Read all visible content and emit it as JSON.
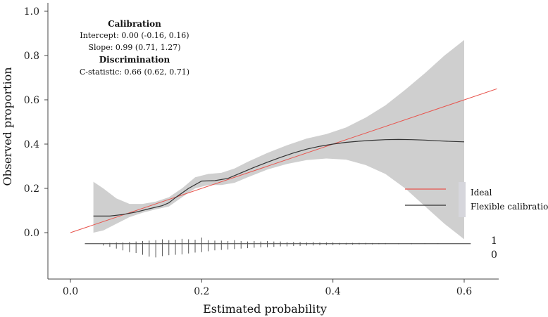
{
  "chart_data": {
    "type": "line",
    "xlabel": "Estimated probability",
    "ylabel": "Observed proportion",
    "xlim": [
      -0.03,
      0.65
    ],
    "ylim": [
      -0.2,
      1.03
    ],
    "xticks": [
      0.0,
      0.2,
      0.4,
      0.6
    ],
    "xtick_labels": [
      "0.0",
      "0.2",
      "0.4",
      "0.6"
    ],
    "yticks": [
      0.0,
      0.2,
      0.4,
      0.6,
      0.8,
      1.0
    ],
    "ytick_labels": [
      "0.0",
      "0.2",
      "0.4",
      "0.6",
      "0.8",
      "1.0"
    ],
    "annotations": {
      "calibration_header": "Calibration",
      "intercept": "Intercept: 0.00 (-0.16, 0.16)",
      "slope": "Slope: 0.99 (0.71, 1.27)",
      "discrimination_header": "Discrimination",
      "c_statistic": "C-statistic: 0.66 (0.62, 0.71)"
    },
    "legend": [
      {
        "name": "Ideal",
        "color": "#e8554e"
      },
      {
        "name": "Flexible calibration",
        "color": "#333333"
      }
    ],
    "series": [
      {
        "name": "Ideal",
        "color": "#e8554e",
        "x": [
          0.0,
          0.65
        ],
        "y": [
          0.0,
          0.65
        ]
      },
      {
        "name": "Flexible calibration",
        "color": "#333333",
        "x": [
          0.035,
          0.06,
          0.08,
          0.1,
          0.12,
          0.14,
          0.15,
          0.16,
          0.18,
          0.2,
          0.22,
          0.24,
          0.26,
          0.28,
          0.3,
          0.32,
          0.34,
          0.36,
          0.38,
          0.4,
          0.42,
          0.44,
          0.46,
          0.48,
          0.5,
          0.52,
          0.54,
          0.56,
          0.58,
          0.6
        ],
        "y": [
          0.075,
          0.075,
          0.082,
          0.093,
          0.108,
          0.122,
          0.135,
          0.158,
          0.2,
          0.233,
          0.235,
          0.245,
          0.27,
          0.295,
          0.318,
          0.34,
          0.36,
          0.377,
          0.39,
          0.4,
          0.408,
          0.413,
          0.417,
          0.42,
          0.421,
          0.42,
          0.418,
          0.415,
          0.412,
          0.41
        ]
      }
    ],
    "confidence_band": {
      "x": [
        0.035,
        0.05,
        0.07,
        0.09,
        0.11,
        0.13,
        0.15,
        0.17,
        0.19,
        0.21,
        0.23,
        0.25,
        0.27,
        0.3,
        0.33,
        0.36,
        0.39,
        0.42,
        0.45,
        0.48,
        0.51,
        0.54,
        0.57,
        0.6
      ],
      "lower": [
        0.0,
        0.01,
        0.04,
        0.07,
        0.09,
        0.105,
        0.118,
        0.16,
        0.2,
        0.215,
        0.215,
        0.225,
        0.25,
        0.285,
        0.31,
        0.328,
        0.335,
        0.33,
        0.305,
        0.265,
        0.2,
        0.12,
        0.04,
        -0.03
      ],
      "upper": [
        0.23,
        0.2,
        0.155,
        0.13,
        0.13,
        0.14,
        0.16,
        0.2,
        0.25,
        0.265,
        0.27,
        0.29,
        0.32,
        0.36,
        0.395,
        0.425,
        0.445,
        0.475,
        0.52,
        0.575,
        0.645,
        0.72,
        0.8,
        0.87
      ]
    },
    "spike_histogram": {
      "labels": [
        "1",
        "0"
      ],
      "x": [
        0.05,
        0.06,
        0.07,
        0.08,
        0.09,
        0.1,
        0.11,
        0.12,
        0.13,
        0.14,
        0.15,
        0.16,
        0.17,
        0.18,
        0.19,
        0.2,
        0.21,
        0.22,
        0.23,
        0.24,
        0.25,
        0.26,
        0.27,
        0.28,
        0.29,
        0.3,
        0.31,
        0.32,
        0.33,
        0.34,
        0.35,
        0.36,
        0.37,
        0.38,
        0.39,
        0.4,
        0.41,
        0.42,
        0.43,
        0.44,
        0.45,
        0.46,
        0.47,
        0.48,
        0.5,
        0.52,
        0.54,
        0.56
      ],
      "events": [
        0.002,
        0.004,
        0.006,
        0.006,
        0.008,
        0.01,
        0.012,
        0.014,
        0.016,
        0.02,
        0.016,
        0.018,
        0.022,
        0.02,
        0.018,
        0.028,
        0.016,
        0.014,
        0.014,
        0.012,
        0.016,
        0.012,
        0.01,
        0.012,
        0.01,
        0.012,
        0.01,
        0.01,
        0.008,
        0.008,
        0.008,
        0.006,
        0.008,
        0.006,
        0.006,
        0.006,
        0.004,
        0.004,
        0.004,
        0.004,
        0.004,
        0.003,
        0.003,
        0.003,
        0.002,
        0.002,
        0.002,
        0.002
      ],
      "nonevents": [
        0.008,
        0.014,
        0.022,
        0.03,
        0.038,
        0.042,
        0.05,
        0.058,
        0.062,
        0.056,
        0.052,
        0.05,
        0.048,
        0.044,
        0.04,
        0.038,
        0.034,
        0.03,
        0.028,
        0.026,
        0.024,
        0.022,
        0.02,
        0.018,
        0.016,
        0.016,
        0.014,
        0.012,
        0.012,
        0.01,
        0.01,
        0.008,
        0.008,
        0.007,
        0.006,
        0.006,
        0.005,
        0.004,
        0.004,
        0.003,
        0.003,
        0.003,
        0.002,
        0.002,
        0.002,
        0.002,
        0.001,
        0.001
      ]
    }
  }
}
